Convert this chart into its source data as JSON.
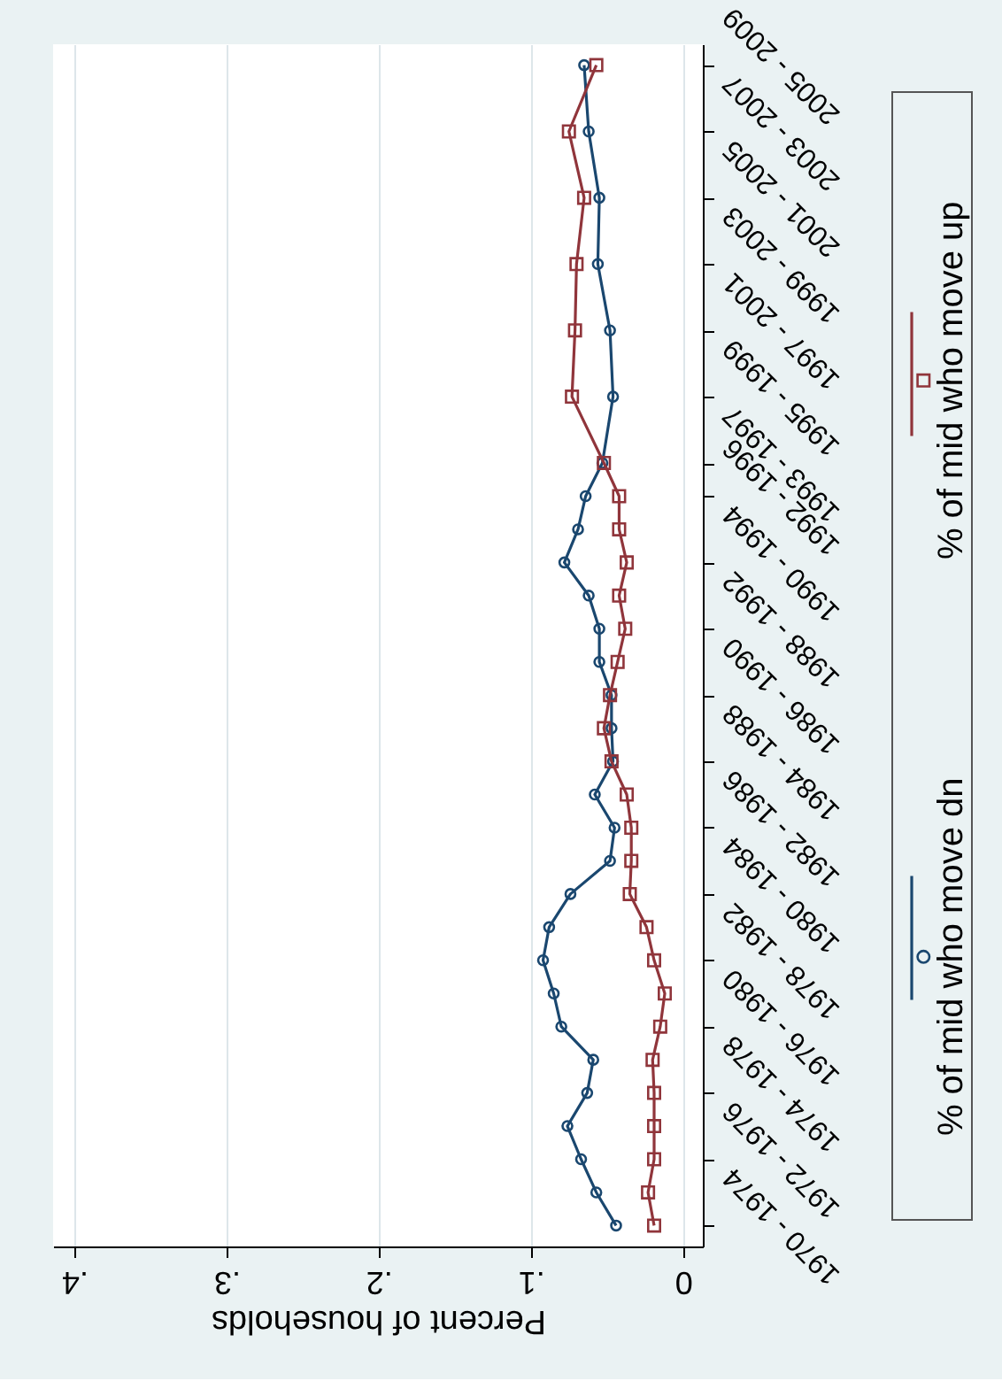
{
  "chart_data": {
    "type": "line",
    "orientation": "horizontal",
    "xlabel": "Percent of households",
    "categories": [
      "2005 - 2009",
      null,
      "2003 - 2007",
      null,
      "2001 - 2005",
      null,
      "1999 - 2003",
      null,
      "1997 - 2001",
      null,
      "1995 - 1999",
      null,
      "1993 - 1997",
      "1992 - 1996",
      null,
      "1990 - 1994",
      null,
      "1988 - 1992",
      null,
      "1986 - 1990",
      null,
      "1984 - 1988",
      null,
      "1982 - 1986",
      null,
      "1980 - 1984",
      null,
      "1978 - 1982",
      null,
      "1976 - 1980",
      null,
      "1974 - 1978",
      null,
      "1972 - 1976",
      null,
      "1970 - 1974"
    ],
    "series": [
      {
        "name": "% of mid who move dn",
        "color": "#1a476f",
        "marker": "circle",
        "values": [
          0.065,
          null,
          0.062,
          null,
          0.055,
          null,
          0.056,
          null,
          0.048,
          null,
          0.046,
          null,
          0.053,
          0.064,
          0.069,
          0.078,
          0.062,
          0.055,
          0.055,
          0.047,
          0.047,
          0.046,
          0.058,
          0.045,
          0.048,
          0.074,
          0.088,
          0.092,
          0.085,
          0.08,
          0.059,
          0.063,
          0.076,
          0.067,
          0.057,
          0.044
        ]
      },
      {
        "name": "% of mid who move up",
        "color": "#90353b",
        "marker": "square",
        "values": [
          0.057,
          null,
          0.075,
          null,
          0.065,
          null,
          0.07,
          null,
          0.071,
          null,
          0.073,
          null,
          0.052,
          0.042,
          0.042,
          0.037,
          0.042,
          0.038,
          0.043,
          0.048,
          0.052,
          0.047,
          0.037,
          0.034,
          0.034,
          0.035,
          0.024,
          0.019,
          0.012,
          0.015,
          0.02,
          0.019,
          0.019,
          0.019,
          0.023,
          0.019
        ]
      }
    ],
    "xlim": [
      0.414,
      -0.013
    ],
    "xticks": [
      0,
      {
        "value": 0.1,
        "label": ".1"
      },
      {
        "value": 0.2,
        "label": ".2"
      },
      {
        "value": 0.3,
        "label": ".3"
      },
      {
        "value": 0.4,
        "label": ".4"
      }
    ],
    "grid": "x",
    "legend": "right"
  }
}
